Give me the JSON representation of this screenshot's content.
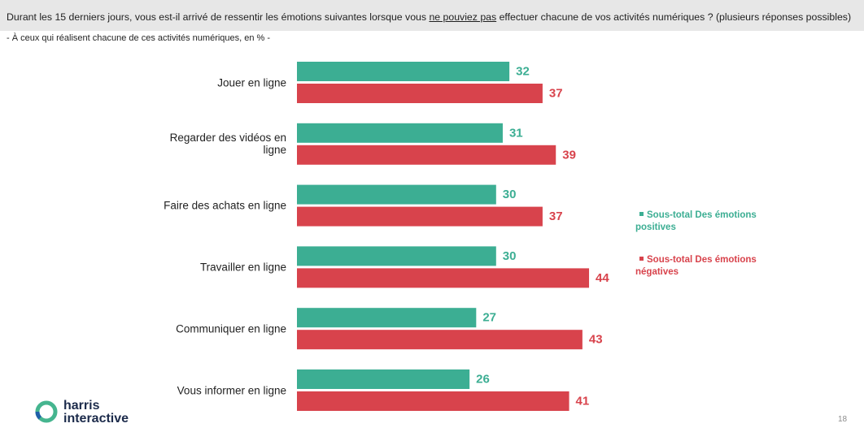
{
  "header": {
    "question_before": "Durant les 15 derniers jours, vous est-il arrivé de ressentir les émotions suivantes lorsque vous ",
    "question_underlined": "ne pouviez pas",
    "question_after": " effectuer chacune de vos activités numériques ? (plusieurs réponses possibles)",
    "subtitle": "- À ceux qui réalisent chacune de ces activités numériques, en % -"
  },
  "colors": {
    "header_background": "#e7e7e7",
    "logo_green": "#45b58f",
    "logo_blue": "#1f5fa8"
  },
  "chart_data": {
    "type": "bar",
    "orientation": "horizontal",
    "categories": [
      "Jouer en ligne",
      "Regarder des vidéos en ligne",
      "Faire des achats en ligne",
      "Travailler en ligne",
      "Communiquer en ligne",
      "Vous informer en ligne"
    ],
    "series": [
      {
        "name": "Sous-total Des émotions positives",
        "color": "#3cae93",
        "values": [
          32,
          31,
          30,
          30,
          27,
          26
        ]
      },
      {
        "name": "Sous-total Des émotions négatives",
        "color": "#d8434c",
        "values": [
          37,
          39,
          37,
          44,
          43,
          41
        ]
      }
    ],
    "xlim": [
      0,
      50
    ],
    "data_labels": true,
    "grid": false,
    "axes_visible": false,
    "legend": "right"
  },
  "logo": {
    "line1": "harris",
    "line2": "interactive",
    "icon": "harris-ring-logo"
  },
  "page_number": "18"
}
